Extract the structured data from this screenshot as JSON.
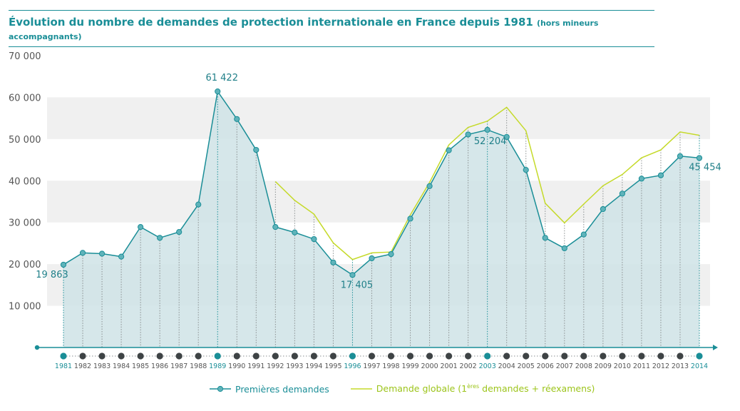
{
  "header": {
    "title": "Évolution du nombre de demandes de protection internationale en France depuis 1981",
    "subtitle": "(hors mineurs accompagnants)"
  },
  "colors": {
    "teal": "#1a8e97",
    "teal_fill": "#cfe3e6",
    "green": "#c5da2a",
    "band": "#f0f0f0"
  },
  "legend": {
    "premieres": "Premières demandes",
    "globale_prefix": "Demande globale (1",
    "globale_sup": "ères",
    "globale_suffix": " demandes + réexamens)"
  },
  "chart_data": {
    "type": "area",
    "title": "Évolution du nombre de demandes de protection internationale en France depuis 1981",
    "subtitle": "(hors mineurs accompagnants)",
    "x": [
      "1981",
      "1982",
      "1983",
      "1984",
      "1985",
      "1986",
      "1987",
      "1988",
      "1989",
      "1990",
      "1991",
      "1992",
      "1993",
      "1994",
      "1995",
      "1996",
      "1997",
      "1998",
      "1999",
      "2000",
      "2001",
      "2002",
      "2003",
      "2004",
      "2005",
      "2006",
      "2007",
      "2008",
      "2009",
      "2010",
      "2011",
      "2012",
      "2013",
      "2014"
    ],
    "highlighted_years": [
      "1981",
      "1989",
      "1996",
      "2003",
      "2014"
    ],
    "ylim": [
      0,
      70000
    ],
    "yticks": [
      10000,
      20000,
      30000,
      40000,
      50000,
      60000,
      70000
    ],
    "ytick_labels": [
      "10 000",
      "20 000",
      "30 000",
      "40 000",
      "50 000",
      "60 000",
      "70 000"
    ],
    "series": [
      {
        "name": "Premières demandes",
        "values": [
          19863,
          22700,
          22500,
          21800,
          28900,
          26300,
          27700,
          34300,
          61422,
          54800,
          47400,
          28900,
          27600,
          26000,
          20400,
          17405,
          21400,
          22400,
          30900,
          38700,
          47300,
          51100,
          52204,
          50500,
          42600,
          26300,
          23800,
          27100,
          33200,
          36900,
          40500,
          41300,
          45900,
          45454
        ]
      },
      {
        "name": "Demande globale (1ères demandes + réexamens)",
        "start_year": "1992",
        "values": [
          null,
          null,
          null,
          null,
          null,
          null,
          null,
          null,
          null,
          null,
          null,
          39800,
          35300,
          32000,
          25100,
          21100,
          22700,
          22900,
          31800,
          39600,
          48600,
          52800,
          54300,
          57600,
          52000,
          34600,
          29900,
          34400,
          38800,
          41500,
          45500,
          47400,
          51700,
          50900
        ]
      }
    ],
    "annotations": [
      {
        "year": "1981",
        "label": "19 863"
      },
      {
        "year": "1989",
        "label": "61 422"
      },
      {
        "year": "1996",
        "label": "17 405"
      },
      {
        "year": "2003",
        "label": "52 204"
      },
      {
        "year": "2014",
        "label": "45 454"
      }
    ],
    "grid": "alternating horizontal bands",
    "legend_position": "bottom-center"
  }
}
